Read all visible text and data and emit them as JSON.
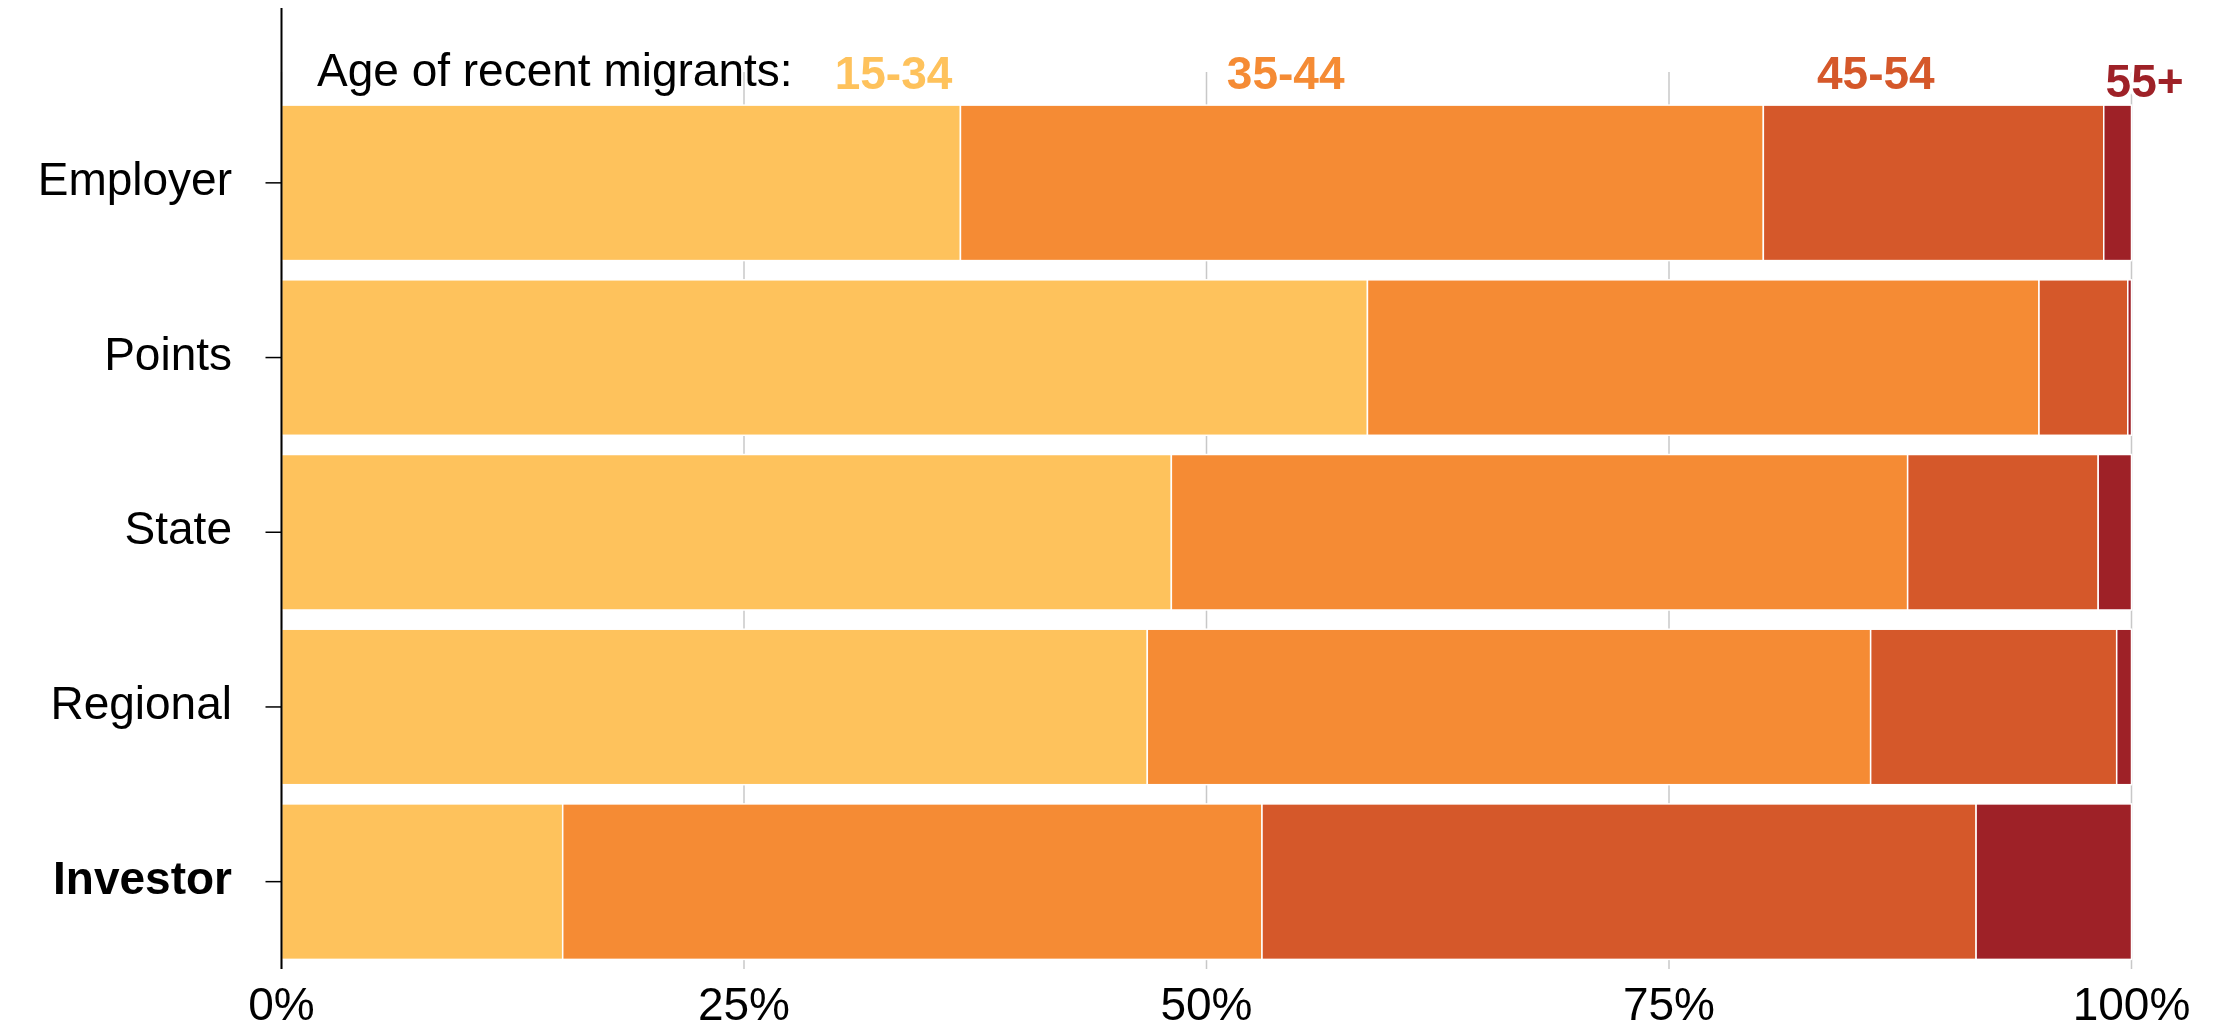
{
  "chart_data": {
    "type": "bar",
    "orientation": "horizontal",
    "stacked": true,
    "categories": [
      "Employer",
      "Points",
      "State",
      "Regional",
      "Investor"
    ],
    "legend_title": "Age of recent migrants:",
    "series": [
      {
        "name": "15-34",
        "color": "#fec25c",
        "values": [
          36.7,
          58.7,
          48.1,
          46.8,
          15.2
        ]
      },
      {
        "name": "35-44",
        "color": "#f58b34",
        "values": [
          43.4,
          36.3,
          39.8,
          39.1,
          37.8
        ]
      },
      {
        "name": "45-54",
        "color": "#d5582a",
        "values": [
          18.4,
          4.8,
          10.3,
          13.3,
          38.6
        ]
      },
      {
        "name": "55+",
        "color": "#9e2127",
        "values": [
          1.5,
          0.2,
          1.8,
          0.8,
          8.4
        ]
      }
    ],
    "xlim": [
      0,
      100
    ],
    "xticks": [
      {
        "value": 0,
        "label": "0%"
      },
      {
        "value": 25,
        "label": "25%"
      },
      {
        "value": 50,
        "label": "50%"
      },
      {
        "value": 75,
        "label": "75%"
      },
      {
        "value": 100,
        "label": "100%"
      }
    ],
    "grid": "x",
    "legend": "top"
  }
}
